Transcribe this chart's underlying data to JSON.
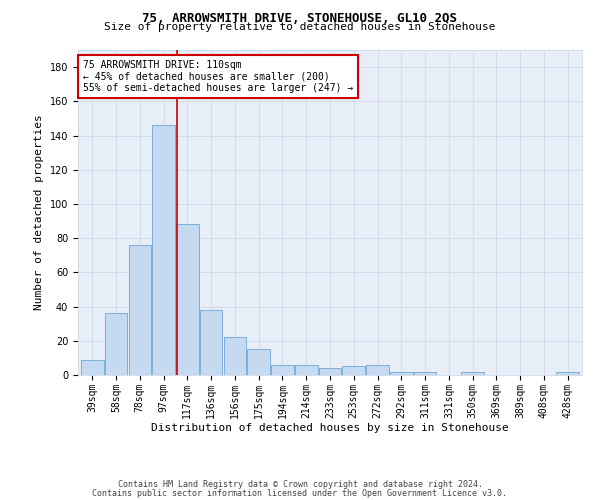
{
  "title": "75, ARROWSMITH DRIVE, STONEHOUSE, GL10 2QS",
  "subtitle": "Size of property relative to detached houses in Stonehouse",
  "xlabel": "Distribution of detached houses by size in Stonehouse",
  "ylabel": "Number of detached properties",
  "categories": [
    "39sqm",
    "58sqm",
    "78sqm",
    "97sqm",
    "117sqm",
    "136sqm",
    "156sqm",
    "175sqm",
    "194sqm",
    "214sqm",
    "233sqm",
    "253sqm",
    "272sqm",
    "292sqm",
    "311sqm",
    "331sqm",
    "350sqm",
    "369sqm",
    "389sqm",
    "408sqm",
    "428sqm"
  ],
  "values": [
    9,
    36,
    76,
    146,
    88,
    38,
    22,
    15,
    6,
    6,
    4,
    5,
    6,
    2,
    2,
    0,
    2,
    0,
    0,
    0,
    2
  ],
  "bar_color": "#c5d9f0",
  "bar_edge_color": "#6da7d4",
  "red_line_index": 3.58,
  "annotation_text": "75 ARROWSMITH DRIVE: 110sqm\n← 45% of detached houses are smaller (200)\n55% of semi-detached houses are larger (247) →",
  "annotation_box_color": "white",
  "annotation_box_edge_color": "#cc0000",
  "red_line_color": "#cc0000",
  "ylim": [
    0,
    190
  ],
  "yticks": [
    0,
    20,
    40,
    60,
    80,
    100,
    120,
    140,
    160,
    180
  ],
  "grid_color": "#d0d8e8",
  "bg_color": "#e8eef8",
  "footer_line1": "Contains HM Land Registry data © Crown copyright and database right 2024.",
  "footer_line2": "Contains public sector information licensed under the Open Government Licence v3.0.",
  "title_fontsize": 9,
  "subtitle_fontsize": 8,
  "axis_label_fontsize": 8,
  "tick_fontsize": 7,
  "annotation_fontsize": 7,
  "footer_fontsize": 6
}
